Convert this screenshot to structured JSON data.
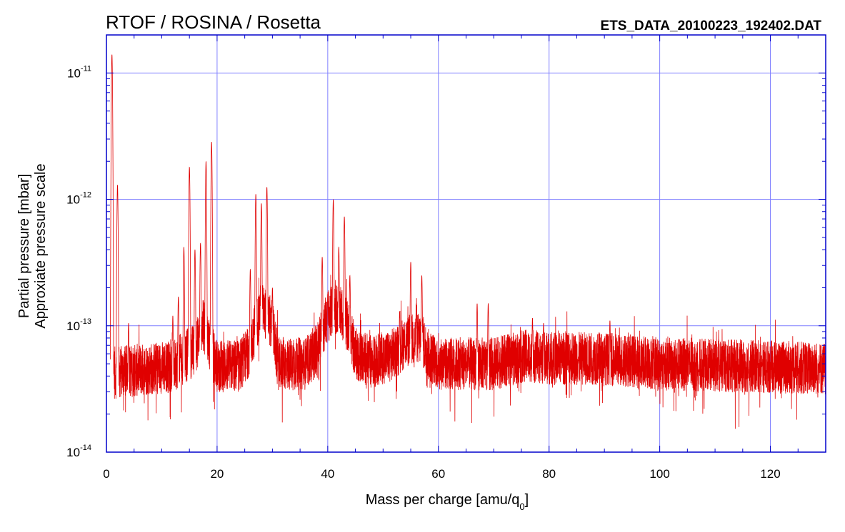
{
  "header": {
    "title": "RTOF / ROSINA / Rosetta",
    "filename": "ETS_DATA_20100223_192402.DAT"
  },
  "chart_data": {
    "type": "line",
    "title": "RTOF / ROSINA / Rosetta",
    "xlabel_main": "Mass per charge [amu/q",
    "xlabel_sub": "0",
    "xlabel_close": "]",
    "ylabel_line1": "Partial pressure [mbar]",
    "ylabel_line2": "Approxiate pressure scale",
    "xlim": [
      0,
      130
    ],
    "ylim": [
      1e-14,
      2e-11
    ],
    "yscale": "log",
    "grid": true,
    "x_ticks": [
      {
        "value": 0,
        "label": "0"
      },
      {
        "value": 20,
        "label": "20"
      },
      {
        "value": 40,
        "label": "40"
      },
      {
        "value": 60,
        "label": "60"
      },
      {
        "value": 80,
        "label": "80"
      },
      {
        "value": 100,
        "label": "100"
      },
      {
        "value": 120,
        "label": "120"
      }
    ],
    "y_ticks": [
      {
        "value": 1e-14,
        "base": "10",
        "exp": "-14"
      },
      {
        "value": 1e-13,
        "base": "10",
        "exp": "-13"
      },
      {
        "value": 1e-12,
        "base": "10",
        "exp": "-12"
      },
      {
        "value": 1e-11,
        "base": "10",
        "exp": "-11"
      }
    ],
    "series": [
      {
        "color": "#e00000",
        "baseline": [
          [
            0.7,
            4.2e-14
          ],
          [
            12,
            4.8e-14
          ],
          [
            13,
            5.2e-14
          ],
          [
            16,
            6.5e-14
          ],
          [
            17.5,
            1e-13
          ],
          [
            20,
            4.8e-14
          ],
          [
            24,
            4.8e-14
          ],
          [
            25.5,
            6e-14
          ],
          [
            28,
            1.4e-13
          ],
          [
            30,
            1e-13
          ],
          [
            31,
            5e-14
          ],
          [
            36,
            5e-14
          ],
          [
            38,
            6.5e-14
          ],
          [
            40,
            1.2e-13
          ],
          [
            42,
            1.4e-13
          ],
          [
            44,
            9e-14
          ],
          [
            45,
            6e-14
          ],
          [
            48,
            5.2e-14
          ],
          [
            52,
            6e-14
          ],
          [
            54,
            7.5e-14
          ],
          [
            57,
            8e-14
          ],
          [
            58,
            6e-14
          ],
          [
            60,
            5e-14
          ],
          [
            66,
            5e-14
          ],
          [
            70,
            5e-14
          ],
          [
            76,
            5.8e-14
          ],
          [
            80,
            5.5e-14
          ],
          [
            90,
            5.5e-14
          ],
          [
            100,
            5e-14
          ],
          [
            130,
            4.6e-14
          ]
        ],
        "peaks": [
          [
            1,
            1.4e-11
          ],
          [
            2,
            1.3e-12
          ],
          [
            4,
            1.05e-13
          ],
          [
            12,
            1.2e-13
          ],
          [
            13,
            1.7e-13
          ],
          [
            14,
            4.2e-13
          ],
          [
            15,
            1.8e-12
          ],
          [
            16,
            4e-13
          ],
          [
            17,
            4.5e-13
          ],
          [
            18,
            2e-12
          ],
          [
            19,
            2.85e-12
          ],
          [
            26,
            2.8e-13
          ],
          [
            27,
            1.1e-12
          ],
          [
            28,
            9.3e-13
          ],
          [
            29,
            1.25e-12
          ],
          [
            30,
            2e-13
          ],
          [
            39,
            3.5e-13
          ],
          [
            40,
            1.8e-13
          ],
          [
            41,
            1e-12
          ],
          [
            42,
            4.2e-13
          ],
          [
            43,
            7.3e-13
          ],
          [
            44,
            2.5e-13
          ],
          [
            53,
            1.3e-13
          ],
          [
            55,
            3.2e-13
          ],
          [
            56,
            1.5e-13
          ],
          [
            57,
            2.5e-13
          ],
          [
            67,
            1.5e-13
          ],
          [
            69,
            1.5e-13
          ],
          [
            77,
            1.15e-13
          ],
          [
            79,
            1.05e-13
          ],
          [
            91,
            1.1e-13
          ]
        ]
      }
    ]
  }
}
